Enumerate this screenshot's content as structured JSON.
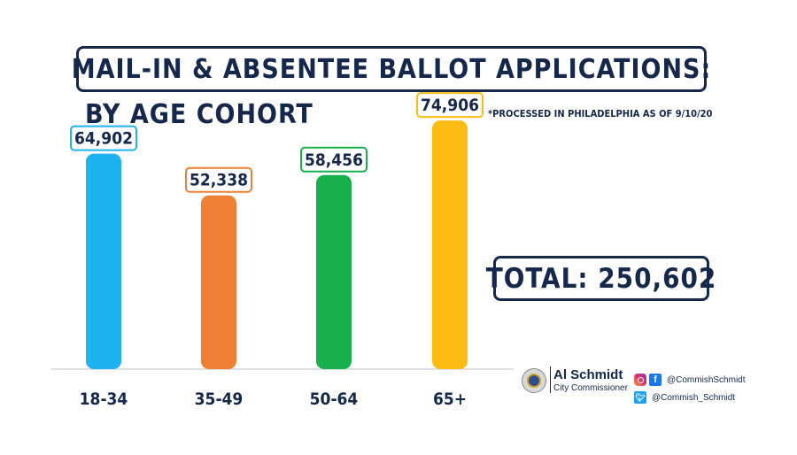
{
  "chart_data": {
    "type": "bar",
    "title": "MAIL-IN & ABSENTEE BALLOT APPLICATIONS:",
    "subtitle": "BY AGE COHORT",
    "footnote": "*PROCESSED IN PHILADELPHIA AS OF 9/10/20",
    "categories": [
      "18-34",
      "35-49",
      "50-64",
      "65+"
    ],
    "values": [
      64902,
      52338,
      58456,
      74906
    ],
    "value_labels": [
      "64,902",
      "52,338",
      "58,456",
      "74,906"
    ],
    "colors": [
      "#1fb2f0",
      "#ee7f35",
      "#17b04d",
      "#fdbc12"
    ],
    "ylim": [
      0,
      80000
    ],
    "grid": false,
    "legend": "none"
  },
  "total_label": "TOTAL: 250,602",
  "footer": {
    "name": "Al Schmidt",
    "role": "City Commissioner",
    "instagram_facebook_handle": "@CommishSchmidt",
    "twitter_handle": "@Commish_Schmidt",
    "icons": [
      "seal-icon",
      "instagram-icon",
      "facebook-icon",
      "twitter-icon"
    ]
  },
  "colors": {
    "navy": "#15284b"
  }
}
